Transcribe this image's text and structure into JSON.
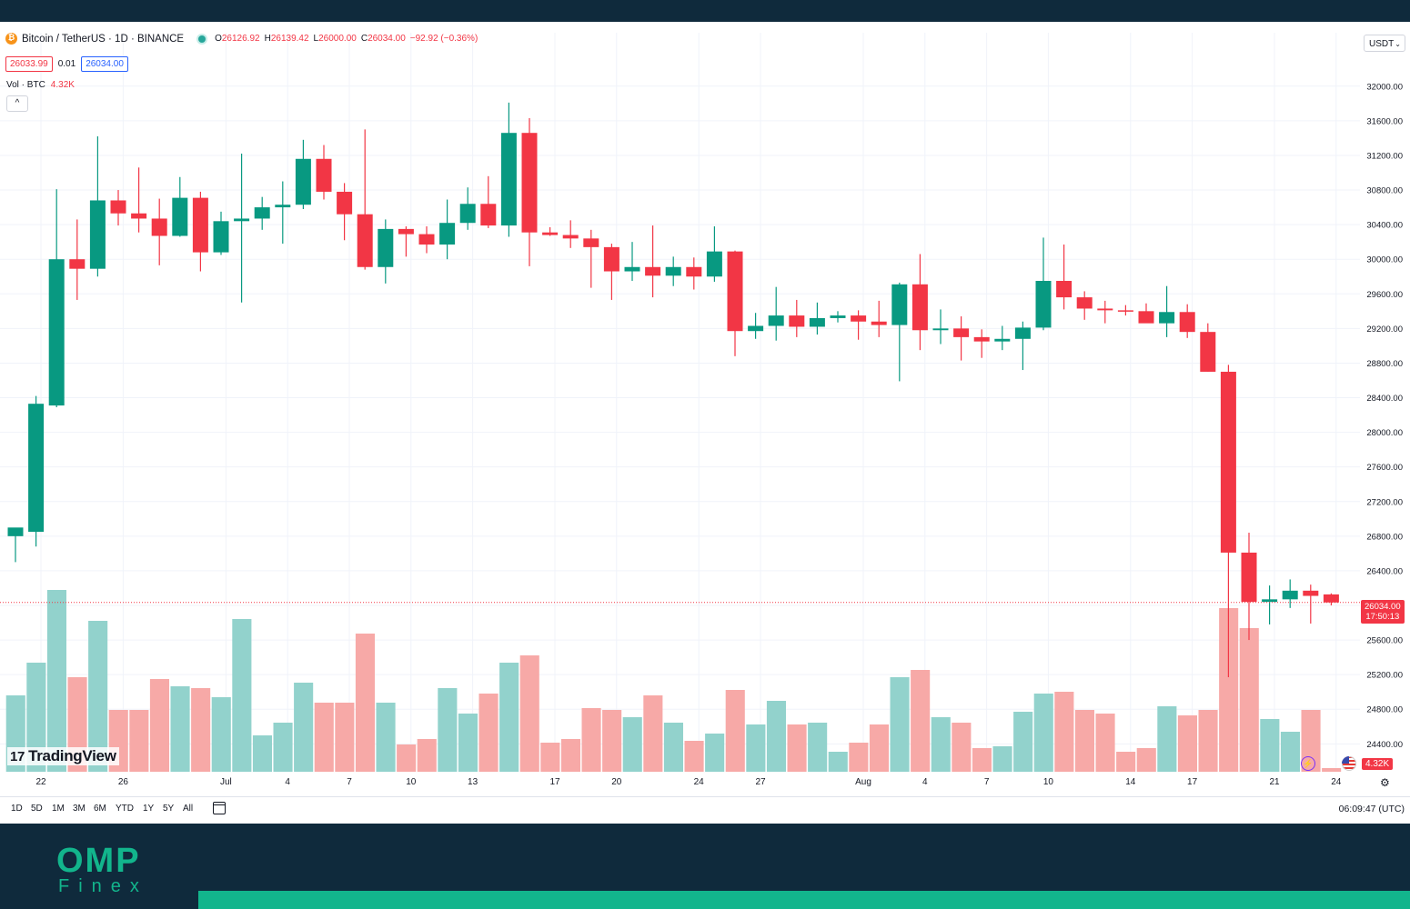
{
  "legend": {
    "symbol": "Bitcoin / TetherUS · 1D · BINANCE",
    "open_label": "O",
    "open": "26126.92",
    "high_label": "H",
    "high": "26139.42",
    "low_label": "L",
    "low": "26000.00",
    "close_label": "C",
    "close": "26034.00",
    "change": "−92.92 (−0.36%)"
  },
  "quote": {
    "sell": "26033.99",
    "spread": "0.01",
    "buy": "26034.00"
  },
  "volume_label": {
    "name": "Vol · BTC",
    "value": "4.32K"
  },
  "currency": "USDT",
  "last_price_tag": {
    "price": "26034.00",
    "countdown": "17:50:13"
  },
  "volume_tag": "4.32K",
  "watermark": "TradingView",
  "period_buttons": [
    "1D",
    "5D",
    "1M",
    "3M",
    "6M",
    "YTD",
    "1Y",
    "5Y",
    "All"
  ],
  "clock": "06:09:47 (UTC)",
  "brand": {
    "main": "OMP",
    "sub": "Finex"
  },
  "colors": {
    "up": "#089981",
    "down": "#f23645",
    "vol_up": "#92d2cc",
    "vol_down": "#f7a9a7",
    "background": "#0f2a3c",
    "accent": "#12b58c"
  },
  "icons": {
    "coin": "bitcoin-icon",
    "collapse": "chevron-up-icon",
    "currency": "chevron-down-icon",
    "calendar": "calendar-icon",
    "settings": "gear-icon",
    "bolt": "lightning-icon",
    "flag": "us-flag-icon"
  },
  "chart_data": {
    "type": "candlestick",
    "y_ticks": [
      24400,
      24800,
      25200,
      25600,
      26000,
      26400,
      26800,
      27200,
      27600,
      28000,
      28400,
      28800,
      29200,
      29600,
      30000,
      30400,
      30800,
      31200,
      31600,
      32000
    ],
    "x_tick_labels": [
      {
        "day": 0,
        "label": "22"
      },
      {
        "day": 4,
        "label": "26"
      },
      {
        "day": 9,
        "label": "Jul"
      },
      {
        "day": 12,
        "label": "4"
      },
      {
        "day": 15,
        "label": "7"
      },
      {
        "day": 18,
        "label": "10"
      },
      {
        "day": 21,
        "label": "13"
      },
      {
        "day": 25,
        "label": "17"
      },
      {
        "day": 28,
        "label": "20"
      },
      {
        "day": 32,
        "label": "24"
      },
      {
        "day": 35,
        "label": "27"
      },
      {
        "day": 40,
        "label": "Aug"
      },
      {
        "day": 43,
        "label": "4"
      },
      {
        "day": 46,
        "label": "7"
      },
      {
        "day": 49,
        "label": "10"
      },
      {
        "day": 53,
        "label": "14"
      },
      {
        "day": 56,
        "label": "17"
      },
      {
        "day": 60,
        "label": "21"
      },
      {
        "day": 63,
        "label": "24"
      }
    ],
    "candles": [
      {
        "o": 26800,
        "h": 26880,
        "l": 26500,
        "c": 26900
      },
      {
        "o": 26850,
        "h": 28420,
        "l": 26680,
        "c": 28330
      },
      {
        "o": 28310,
        "h": 30810,
        "l": 28290,
        "c": 30000
      },
      {
        "o": 30000,
        "h": 30460,
        "l": 29530,
        "c": 29890
      },
      {
        "o": 29890,
        "h": 31420,
        "l": 29800,
        "c": 30680
      },
      {
        "o": 30680,
        "h": 30800,
        "l": 30390,
        "c": 30530
      },
      {
        "o": 30530,
        "h": 31060,
        "l": 30310,
        "c": 30470
      },
      {
        "o": 30470,
        "h": 30700,
        "l": 29930,
        "c": 30270
      },
      {
        "o": 30270,
        "h": 30950,
        "l": 30260,
        "c": 30710
      },
      {
        "o": 30710,
        "h": 30780,
        "l": 29860,
        "c": 30080
      },
      {
        "o": 30080,
        "h": 30550,
        "l": 30050,
        "c": 30440
      },
      {
        "o": 30440,
        "h": 31220,
        "l": 29500,
        "c": 30470
      },
      {
        "o": 30470,
        "h": 30720,
        "l": 30340,
        "c": 30600
      },
      {
        "o": 30600,
        "h": 30900,
        "l": 30180,
        "c": 30630
      },
      {
        "o": 30630,
        "h": 31380,
        "l": 30580,
        "c": 31160
      },
      {
        "o": 31160,
        "h": 31320,
        "l": 30690,
        "c": 30780
      },
      {
        "o": 30780,
        "h": 30880,
        "l": 30220,
        "c": 30520
      },
      {
        "o": 30520,
        "h": 31500,
        "l": 29880,
        "c": 29910
      },
      {
        "o": 29910,
        "h": 30460,
        "l": 29720,
        "c": 30350
      },
      {
        "o": 30350,
        "h": 30380,
        "l": 30030,
        "c": 30290
      },
      {
        "o": 30290,
        "h": 30380,
        "l": 30070,
        "c": 30170
      },
      {
        "o": 30170,
        "h": 30690,
        "l": 30000,
        "c": 30420
      },
      {
        "o": 30420,
        "h": 30830,
        "l": 30340,
        "c": 30640
      },
      {
        "o": 30640,
        "h": 30960,
        "l": 30360,
        "c": 30390
      },
      {
        "o": 30390,
        "h": 31810,
        "l": 30260,
        "c": 31460
      },
      {
        "o": 31460,
        "h": 31630,
        "l": 29920,
        "c": 30310
      },
      {
        "o": 30310,
        "h": 30370,
        "l": 30270,
        "c": 30280
      },
      {
        "o": 30280,
        "h": 30450,
        "l": 30130,
        "c": 30240
      },
      {
        "o": 30240,
        "h": 30340,
        "l": 29670,
        "c": 30140
      },
      {
        "o": 30140,
        "h": 30180,
        "l": 29530,
        "c": 29860
      },
      {
        "o": 29860,
        "h": 30200,
        "l": 29750,
        "c": 29910
      },
      {
        "o": 29910,
        "h": 30390,
        "l": 29560,
        "c": 29810
      },
      {
        "o": 29810,
        "h": 30030,
        "l": 29690,
        "c": 29910
      },
      {
        "o": 29910,
        "h": 30020,
        "l": 29650,
        "c": 29800
      },
      {
        "o": 29800,
        "h": 30380,
        "l": 29740,
        "c": 30090
      },
      {
        "o": 30090,
        "h": 30100,
        "l": 28880,
        "c": 29170
      },
      {
        "o": 29170,
        "h": 29380,
        "l": 29080,
        "c": 29230
      },
      {
        "o": 29230,
        "h": 29680,
        "l": 29060,
        "c": 29350
      },
      {
        "o": 29350,
        "h": 29530,
        "l": 29100,
        "c": 29220
      },
      {
        "o": 29220,
        "h": 29500,
        "l": 29130,
        "c": 29320
      },
      {
        "o": 29320,
        "h": 29400,
        "l": 29270,
        "c": 29350
      },
      {
        "o": 29350,
        "h": 29410,
        "l": 29070,
        "c": 29280
      },
      {
        "o": 29280,
        "h": 29520,
        "l": 29100,
        "c": 29240
      },
      {
        "o": 29240,
        "h": 29730,
        "l": 28590,
        "c": 29710
      },
      {
        "o": 29710,
        "h": 30060,
        "l": 28950,
        "c": 29180
      },
      {
        "o": 29180,
        "h": 29420,
        "l": 29020,
        "c": 29200
      },
      {
        "o": 29200,
        "h": 29340,
        "l": 28830,
        "c": 29100
      },
      {
        "o": 29100,
        "h": 29190,
        "l": 28860,
        "c": 29050
      },
      {
        "o": 29050,
        "h": 29230,
        "l": 28950,
        "c": 29080
      },
      {
        "o": 29080,
        "h": 29280,
        "l": 28720,
        "c": 29210
      },
      {
        "o": 29210,
        "h": 30250,
        "l": 29180,
        "c": 29750
      },
      {
        "o": 29750,
        "h": 30170,
        "l": 29420,
        "c": 29560
      },
      {
        "o": 29560,
        "h": 29630,
        "l": 29300,
        "c": 29430
      },
      {
        "o": 29430,
        "h": 29520,
        "l": 29260,
        "c": 29410
      },
      {
        "o": 29410,
        "h": 29470,
        "l": 29350,
        "c": 29400
      },
      {
        "o": 29400,
        "h": 29490,
        "l": 29270,
        "c": 29260
      },
      {
        "o": 29260,
        "h": 29690,
        "l": 29100,
        "c": 29390
      },
      {
        "o": 29390,
        "h": 29480,
        "l": 29090,
        "c": 29160
      },
      {
        "o": 29160,
        "h": 29260,
        "l": 28700,
        "c": 28700
      },
      {
        "o": 28700,
        "h": 28780,
        "l": 25170,
        "c": 26610
      },
      {
        "o": 26610,
        "h": 26840,
        "l": 25600,
        "c": 26040
      },
      {
        "o": 26040,
        "h": 26230,
        "l": 25780,
        "c": 26070
      },
      {
        "o": 26070,
        "h": 26300,
        "l": 25970,
        "c": 26170
      },
      {
        "o": 26170,
        "h": 26240,
        "l": 25790,
        "c": 26110
      },
      {
        "o": 26127,
        "h": 26139,
        "l": 26000,
        "c": 26034
      }
    ],
    "volumes": [
      0.42,
      0.6,
      1.0,
      0.52,
      0.83,
      0.34,
      0.34,
      0.51,
      0.47,
      0.46,
      0.41,
      0.84,
      0.2,
      0.27,
      0.49,
      0.38,
      0.38,
      0.76,
      0.38,
      0.15,
      0.18,
      0.46,
      0.32,
      0.43,
      0.6,
      0.64,
      0.16,
      0.18,
      0.35,
      0.34,
      0.3,
      0.42,
      0.27,
      0.17,
      0.21,
      0.45,
      0.26,
      0.39,
      0.26,
      0.27,
      0.11,
      0.16,
      0.26,
      0.52,
      0.56,
      0.3,
      0.27,
      0.13,
      0.14,
      0.33,
      0.43,
      0.44,
      0.34,
      0.32,
      0.11,
      0.13,
      0.36,
      0.31,
      0.34,
      0.9,
      0.79,
      0.29,
      0.22,
      0.34,
      0.02
    ],
    "last_price": 26034,
    "ylim": [
      24200,
      32100
    ]
  }
}
